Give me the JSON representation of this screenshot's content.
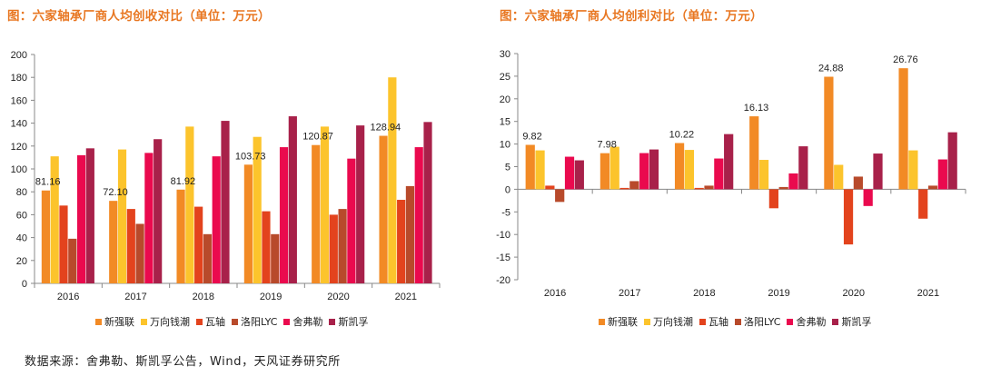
{
  "titles": {
    "left": "图：六家轴承厂商人均创收对比（单位：万元）",
    "right": "图：六家轴承厂商人均创利对比（单位：万元）"
  },
  "source": "数据来源：舍弗勒、斯凯孚公告，Wind，天风证券研究所",
  "colors": {
    "新强联": "#f28a25",
    "万向钱潮": "#fcc42c",
    "瓦轴": "#e3431d",
    "洛阳LYC": "#b84a2b",
    "舍弗勒": "#ea0a4e",
    "斯凯孚": "#a8214a"
  },
  "chart_data": [
    {
      "type": "bar",
      "title": "图：六家轴承厂商人均创收对比（单位：万元）",
      "categories": [
        "2016",
        "2017",
        "2018",
        "2019",
        "2020",
        "2021"
      ],
      "ylim": [
        0,
        200
      ],
      "yticks": [
        0,
        20,
        40,
        60,
        80,
        100,
        120,
        140,
        160,
        180,
        200
      ],
      "grid": false,
      "legend_position": "bottom",
      "series": [
        {
          "name": "新强联",
          "values": [
            81.16,
            72.1,
            81.92,
            103.73,
            120.87,
            128.94
          ],
          "labels": [
            "81.16",
            "72.10",
            "81.92",
            "103.73",
            "120.87",
            "128.94"
          ]
        },
        {
          "name": "万向钱潮",
          "values": [
            111,
            117,
            137,
            128,
            137,
            180
          ]
        },
        {
          "name": "瓦轴",
          "values": [
            68,
            65,
            67,
            63,
            60,
            73
          ]
        },
        {
          "name": "洛阳LYC",
          "values": [
            39,
            52,
            43,
            43,
            65,
            85
          ]
        },
        {
          "name": "舍弗勒",
          "values": [
            112,
            114,
            111,
            119,
            109,
            119
          ]
        },
        {
          "name": "斯凯孚",
          "values": [
            118,
            126,
            142,
            146,
            138,
            141
          ]
        }
      ]
    },
    {
      "type": "bar",
      "title": "图：六家轴承厂商人均创利对比（单位：万元）",
      "categories": [
        "2016",
        "2017",
        "2018",
        "2019",
        "2020",
        "2021"
      ],
      "ylim": [
        -20,
        30
      ],
      "yticks": [
        -20,
        -15,
        -10,
        -5,
        0,
        5,
        10,
        15,
        20,
        25,
        30
      ],
      "grid": false,
      "legend_position": "bottom",
      "series": [
        {
          "name": "新强联",
          "values": [
            9.82,
            7.98,
            10.22,
            16.13,
            24.88,
            26.76
          ],
          "labels": [
            "9.82",
            "7.98",
            "10.22",
            "16.13",
            "24.88",
            "26.76"
          ]
        },
        {
          "name": "万向钱潮",
          "values": [
            8.6,
            9.4,
            8.7,
            6.5,
            5.4,
            8.6
          ]
        },
        {
          "name": "瓦轴",
          "values": [
            0.8,
            0.3,
            0.3,
            -4.2,
            -12.2,
            -6.5
          ]
        },
        {
          "name": "洛阳LYC",
          "values": [
            -2.8,
            1.8,
            0.8,
            0.5,
            2.8,
            0.8
          ]
        },
        {
          "name": "舍弗勒",
          "values": [
            7.2,
            8.0,
            6.8,
            3.5,
            -3.7,
            6.6
          ]
        },
        {
          "name": "斯凯孚",
          "values": [
            6.4,
            8.8,
            12.2,
            9.5,
            7.9,
            12.6
          ]
        }
      ]
    }
  ]
}
